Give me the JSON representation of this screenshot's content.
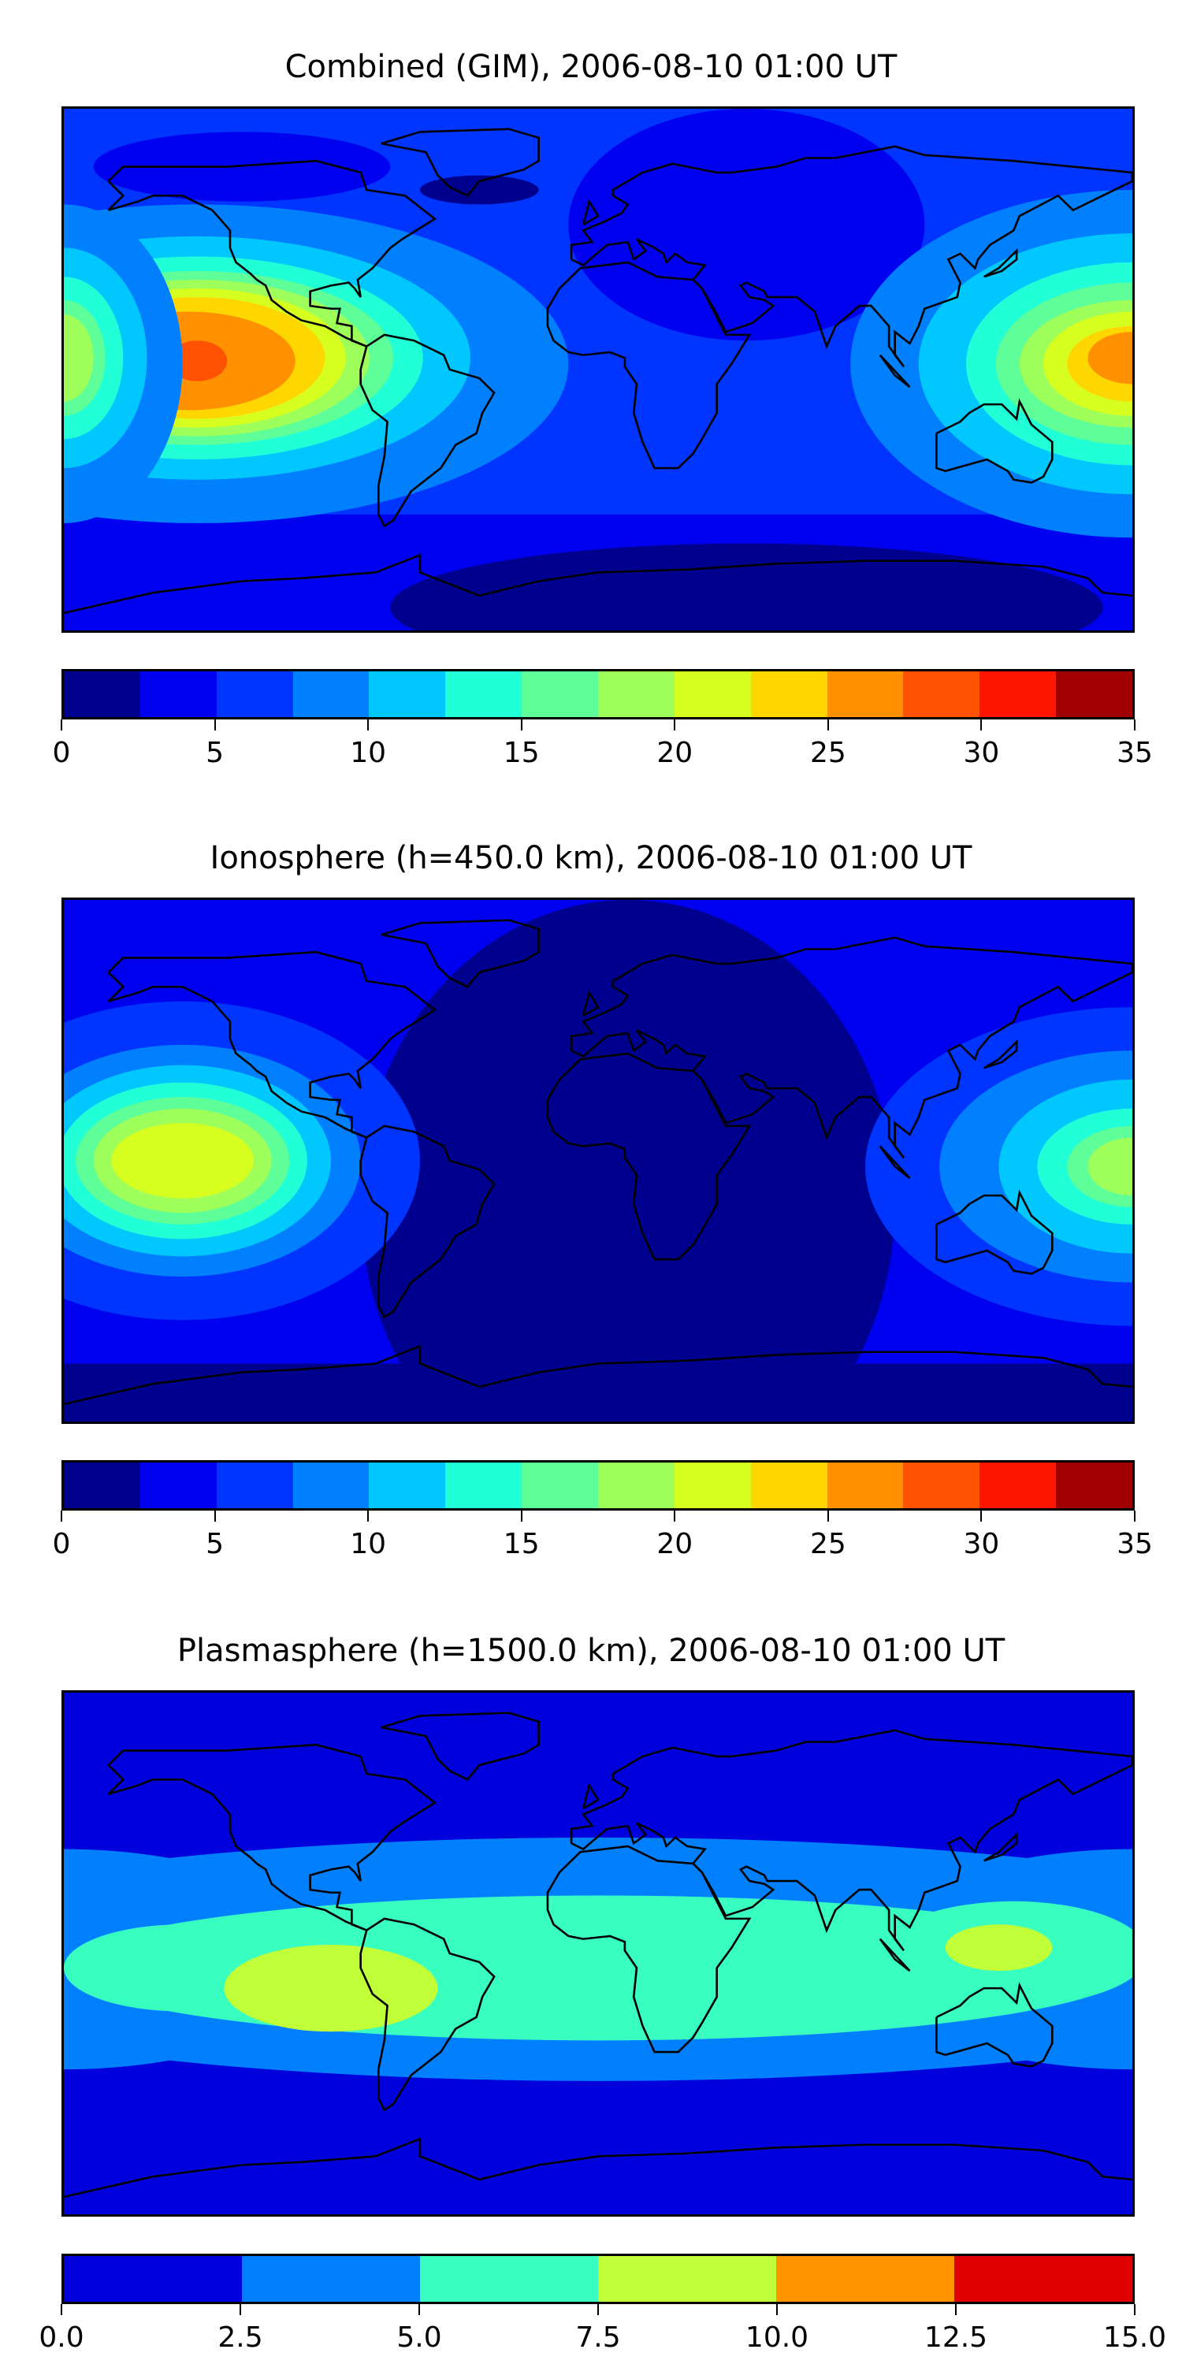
{
  "chart_data": [
    {
      "type": "heatmap",
      "title": "Combined (GIM), 2006-08-10 01:00 UT",
      "colorbar": {
        "ticks": [
          "0",
          "5",
          "10",
          "15",
          "20",
          "25",
          "30",
          "35"
        ],
        "range": [
          0,
          35
        ],
        "levels": [
          0,
          2.5,
          5,
          7.5,
          10,
          12.5,
          15,
          17.5,
          20,
          22.5,
          25,
          27.5,
          30,
          32.5,
          35
        ],
        "colors": [
          "#00008f",
          "#0000f0",
          "#0034ff",
          "#0080ff",
          "#00c8ff",
          "#20ffd6",
          "#5eff98",
          "#9eff5a",
          "#d6ff20",
          "#ffd700",
          "#ff9100",
          "#ff5200",
          "#ff1400",
          "#a00000"
        ]
      },
      "features": "Maximum ~27.5-30 over central Pacific near equator; secondary maximum ~25 over western Pacific/Indonesia; minimum 0-2.5 over Southern Ocean/Antarctica"
    },
    {
      "type": "heatmap",
      "title": "Ionosphere  (h=450.0 km), 2006-08-10 01:00 UT",
      "colorbar": {
        "ticks": [
          "0",
          "5",
          "10",
          "15",
          "20",
          "25",
          "30",
          "35"
        ],
        "range": [
          0,
          35
        ],
        "levels": [
          0,
          2.5,
          5,
          7.5,
          10,
          12.5,
          15,
          17.5,
          20,
          22.5,
          25,
          27.5,
          30,
          32.5,
          35
        ],
        "colors": [
          "#00008f",
          "#0000f0",
          "#0034ff",
          "#0080ff",
          "#00c8ff",
          "#20ffd6",
          "#5eff98",
          "#9eff5a",
          "#d6ff20",
          "#ffd700",
          "#ff9100",
          "#ff5200",
          "#ff1400",
          "#a00000"
        ]
      },
      "features": "Maximum ~20-22.5 over central Pacific; ~17.5-20 over western Pacific; 0-2.5 over Atlantic/Africa"
    },
    {
      "type": "heatmap",
      "title": "Plasmasphere (h=1500.0 km), 2006-08-10 01:00 UT",
      "colorbar": {
        "ticks": [
          "0.0",
          "2.5",
          "5.0",
          "7.5",
          "10.0",
          "12.5",
          "15.0"
        ],
        "range": [
          0,
          15
        ],
        "levels": [
          0,
          2.5,
          5,
          7.5,
          10,
          12.5,
          15
        ],
        "colors": [
          "#0000dc",
          "#0080ff",
          "#38ffc0",
          "#c0ff38",
          "#ff9400",
          "#e00000"
        ]
      },
      "features": "Equatorial band 5-7.5 with 7.5-10 patches over South America and western Pacific; 0-2.5 at high latitudes"
    }
  ]
}
